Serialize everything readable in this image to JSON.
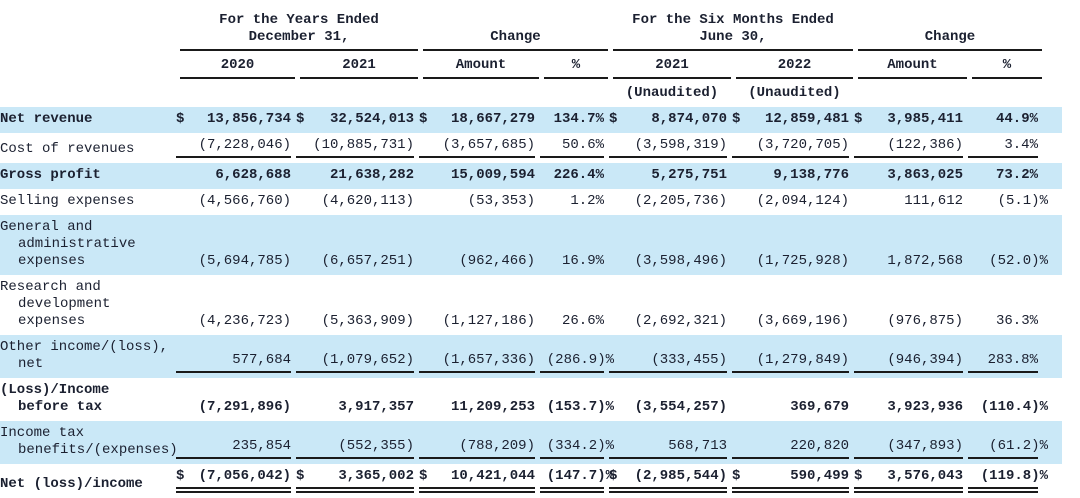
{
  "page": {
    "stripe_color": "#cae8f7",
    "text_color": "#1b2030",
    "line_color": "#1a1a1a"
  },
  "header": {
    "groups": [
      {
        "title": "For the Years Ended\nDecember 31,"
      },
      {
        "title": "Change"
      },
      {
        "title": "For the Six Months Ended\nJune 30,"
      },
      {
        "title": "Change"
      }
    ],
    "columns": [
      "2020",
      "2021",
      "Amount",
      "%",
      "2021",
      "2022",
      "Amount",
      "%"
    ],
    "subnotes": [
      {
        "text": "(Unaudited)"
      },
      {
        "text": "(Unaudited)"
      }
    ]
  },
  "table": {
    "rows": [
      {
        "label_lines": [
          "Net revenue"
        ],
        "bold": true,
        "shaded": true,
        "rule": "none",
        "cells": [
          {
            "d": "$",
            "v": "13,856,734"
          },
          {
            "d": "$",
            "v": "32,524,013"
          },
          {
            "d": "$",
            "v": "18,667,279"
          },
          {
            "v": "134.7",
            "s": "%"
          },
          {
            "d": "$",
            "v": "8,874,070"
          },
          {
            "d": "$",
            "v": "12,859,481"
          },
          {
            "d": "$",
            "v": "3,985,411"
          },
          {
            "v": "44.9",
            "s": "%"
          }
        ]
      },
      {
        "label_lines": [
          "Cost of revenues"
        ],
        "bold": false,
        "shaded": false,
        "rule": "single",
        "cells": [
          {
            "v": "(7,228,046)"
          },
          {
            "v": "(10,885,731)"
          },
          {
            "v": "(3,657,685)"
          },
          {
            "v": "50.6",
            "s": "%"
          },
          {
            "v": "(3,598,319)"
          },
          {
            "v": "(3,720,705)"
          },
          {
            "v": "(122,386)"
          },
          {
            "v": "3.4",
            "s": "%"
          }
        ]
      },
      {
        "label_lines": [
          "Gross profit"
        ],
        "bold": true,
        "shaded": true,
        "rule": "none",
        "cells": [
          {
            "v": "6,628,688"
          },
          {
            "v": "21,638,282"
          },
          {
            "v": "15,009,594"
          },
          {
            "v": "226.4",
            "s": "%"
          },
          {
            "v": "5,275,751"
          },
          {
            "v": "9,138,776"
          },
          {
            "v": "3,863,025"
          },
          {
            "v": "73.2",
            "s": "%"
          }
        ]
      },
      {
        "label_lines": [
          "Selling expenses"
        ],
        "bold": false,
        "shaded": false,
        "rule": "none",
        "cells": [
          {
            "v": "(4,566,760)"
          },
          {
            "v": "(4,620,113)"
          },
          {
            "v": "(53,353)"
          },
          {
            "v": "1.2",
            "s": "%"
          },
          {
            "v": "(2,205,736)"
          },
          {
            "v": "(2,094,124)"
          },
          {
            "v": "111,612"
          },
          {
            "v": "(5.1)",
            "s": "%"
          }
        ]
      },
      {
        "label_lines": [
          "General and",
          "administrative",
          "expenses"
        ],
        "bold": false,
        "shaded": true,
        "rule": "none",
        "cells": [
          {
            "v": "(5,694,785)"
          },
          {
            "v": "(6,657,251)"
          },
          {
            "v": "(962,466)"
          },
          {
            "v": "16.9",
            "s": "%"
          },
          {
            "v": "(3,598,496)"
          },
          {
            "v": "(1,725,928)"
          },
          {
            "v": "1,872,568"
          },
          {
            "v": "(52.0)",
            "s": "%"
          }
        ]
      },
      {
        "label_lines": [
          "Research and",
          "development",
          "expenses"
        ],
        "bold": false,
        "shaded": false,
        "rule": "none",
        "cells": [
          {
            "v": "(4,236,723)"
          },
          {
            "v": "(5,363,909)"
          },
          {
            "v": "(1,127,186)"
          },
          {
            "v": "26.6",
            "s": "%"
          },
          {
            "v": "(2,692,321)"
          },
          {
            "v": "(3,669,196)"
          },
          {
            "v": "(976,875)"
          },
          {
            "v": "36.3",
            "s": "%"
          }
        ]
      },
      {
        "label_lines": [
          "Other income/(loss),",
          "net"
        ],
        "bold": false,
        "shaded": true,
        "rule": "single",
        "cells": [
          {
            "v": "577,684"
          },
          {
            "v": "(1,079,652)"
          },
          {
            "v": "(1,657,336)"
          },
          {
            "v": "(286.9)",
            "s": "%"
          },
          {
            "v": "(333,455)"
          },
          {
            "v": "(1,279,849)"
          },
          {
            "v": "(946,394)"
          },
          {
            "v": "283.8",
            "s": "%"
          }
        ]
      },
      {
        "label_lines": [
          "(Loss)/Income",
          "before tax"
        ],
        "bold": true,
        "shaded": false,
        "rule": "none",
        "cells": [
          {
            "v": "(7,291,896)"
          },
          {
            "v": "3,917,357"
          },
          {
            "v": "11,209,253"
          },
          {
            "v": "(153.7)",
            "s": "%"
          },
          {
            "v": "(3,554,257)"
          },
          {
            "v": "369,679"
          },
          {
            "v": "3,923,936"
          },
          {
            "v": "(110.4)",
            "s": "%"
          }
        ]
      },
      {
        "label_lines": [
          "Income tax",
          "benefits/(expenses)"
        ],
        "bold": false,
        "shaded": true,
        "rule": "single",
        "cells": [
          {
            "v": "235,854"
          },
          {
            "v": "(552,355)"
          },
          {
            "v": "(788,209)"
          },
          {
            "v": "(334.2)",
            "s": "%"
          },
          {
            "v": "568,713"
          },
          {
            "v": "220,820"
          },
          {
            "v": "(347,893)"
          },
          {
            "v": "(61.2)",
            "s": "%"
          }
        ]
      },
      {
        "label_lines": [
          "Net (loss)/income"
        ],
        "bold": true,
        "shaded": false,
        "rule": "double",
        "cells": [
          {
            "d": "$",
            "v": "(7,056,042)"
          },
          {
            "d": "$",
            "v": "3,365,002"
          },
          {
            "d": "$",
            "v": "10,421,044"
          },
          {
            "v": "(147.7)",
            "s": "%"
          },
          {
            "d": "$",
            "v": "(2,985,544)"
          },
          {
            "d": "$",
            "v": "590,499"
          },
          {
            "d": "$",
            "v": "3,576,043"
          },
          {
            "v": "(119.8)",
            "s": "%"
          }
        ]
      }
    ]
  }
}
